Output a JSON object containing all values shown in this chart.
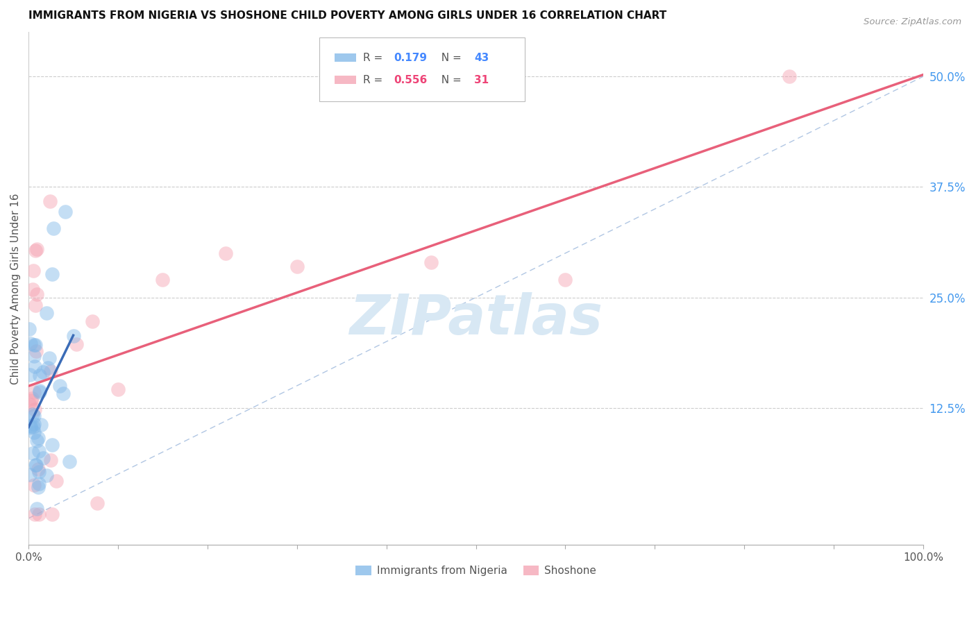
{
  "title": "IMMIGRANTS FROM NIGERIA VS SHOSHONE CHILD POVERTY AMONG GIRLS UNDER 16 CORRELATION CHART",
  "source": "Source: ZipAtlas.com",
  "ylabel": "Child Poverty Among Girls Under 16",
  "y_tick_labels": [
    "12.5%",
    "25.0%",
    "37.5%",
    "50.0%"
  ],
  "y_tick_values": [
    12.5,
    25.0,
    37.5,
    50.0
  ],
  "xlim": [
    0,
    100
  ],
  "ylim": [
    -3,
    55
  ],
  "blue_r": 0.179,
  "blue_n": 43,
  "pink_r": 0.556,
  "pink_n": 31,
  "blue_color": "#7EB6E8",
  "pink_color": "#F4A0B0",
  "blue_line_color": "#3B6CB7",
  "pink_line_color": "#E8607A",
  "dashed_line_color": "#A8C0E0",
  "watermark_color": "#D8E8F4",
  "blue_seed": 10,
  "pink_seed": 20
}
